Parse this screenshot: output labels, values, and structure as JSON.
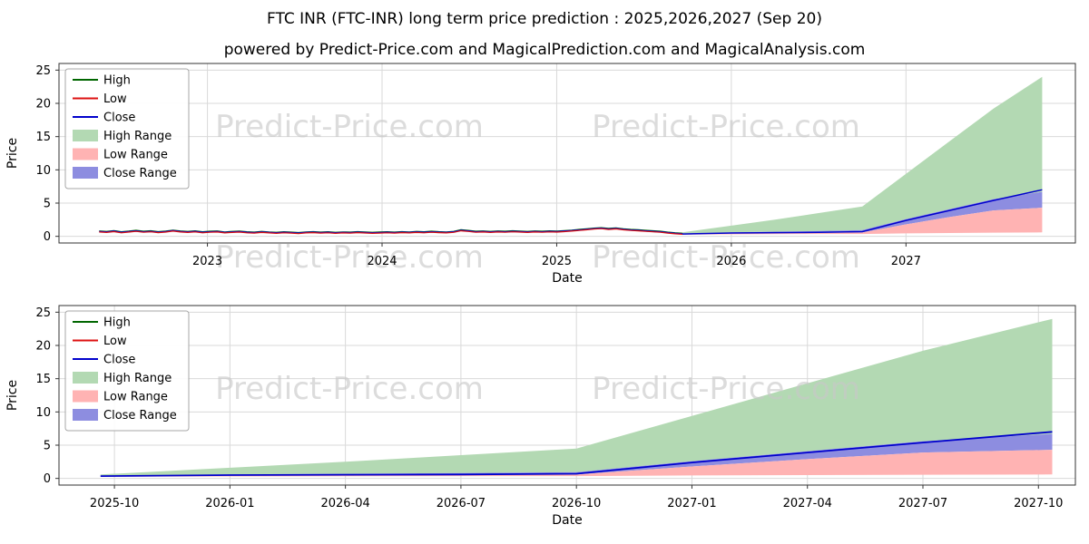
{
  "page": {
    "title": "FTC INR (FTC-INR) long term price prediction : 2025,2026,2027 (Sep 20)",
    "subtitle": "powered by Predict-Price.com and MagicalPrediction.com and MagicalAnalysis.com",
    "watermark": "Predict-Price.com"
  },
  "colors": {
    "high_line": "#006600",
    "low_line": "#dd1111",
    "close_line": "#0000cc",
    "high_range_fill": "#b3d9b3",
    "low_range_fill": "#ffb3b3",
    "close_range_fill": "#8d8de0",
    "grid": "#d9d9d9",
    "axis": "#333333",
    "watermark": "#c8c8c8",
    "legend_border": "#a0a0a0"
  },
  "legend": [
    {
      "label": "High",
      "swatch": "line",
      "color_key": "high_line"
    },
    {
      "label": "Low",
      "swatch": "line",
      "color_key": "low_line"
    },
    {
      "label": "Close",
      "swatch": "line",
      "color_key": "close_line"
    },
    {
      "label": "High Range",
      "swatch": "patch",
      "color_key": "high_range_fill"
    },
    {
      "label": "Low Range",
      "swatch": "patch",
      "color_key": "low_range_fill"
    },
    {
      "label": "Close Range",
      "swatch": "patch",
      "color_key": "close_range_fill"
    }
  ],
  "chart_data": [
    {
      "type": "line",
      "title": "",
      "xlabel": "Date",
      "ylabel": "Price",
      "x_range": [
        2022.15,
        2027.97
      ],
      "y_range": [
        -1,
        26
      ],
      "y_ticks": [
        0,
        5,
        10,
        15,
        20,
        25
      ],
      "x_ticks": [
        {
          "v": 2023,
          "label": "2023"
        },
        {
          "v": 2024,
          "label": "2024"
        },
        {
          "v": 2025,
          "label": "2025"
        },
        {
          "v": 2026,
          "label": "2026"
        },
        {
          "v": 2027,
          "label": "2027"
        }
      ],
      "grid": true,
      "legend_position": "upper-left",
      "show_historical": true,
      "show_forecast": true
    },
    {
      "type": "line",
      "title": "",
      "xlabel": "Date",
      "ylabel": "Price",
      "x_range": [
        2025.63,
        2027.83
      ],
      "y_range": [
        -1,
        26
      ],
      "y_ticks": [
        0,
        5,
        10,
        15,
        20,
        25
      ],
      "x_ticks": [
        {
          "v": 2025.75,
          "label": "2025-10"
        },
        {
          "v": 2026.0,
          "label": "2026-01"
        },
        {
          "v": 2026.25,
          "label": "2026-04"
        },
        {
          "v": 2026.5,
          "label": "2026-07"
        },
        {
          "v": 2026.75,
          "label": "2026-10"
        },
        {
          "v": 2027.0,
          "label": "2027-01"
        },
        {
          "v": 2027.25,
          "label": "2027-04"
        },
        {
          "v": 2027.5,
          "label": "2027-07"
        },
        {
          "v": 2027.75,
          "label": "2027-10"
        }
      ],
      "grid": true,
      "legend_position": "upper-left",
      "show_historical": false,
      "show_forecast": true
    }
  ],
  "historical": {
    "x_start": 2022.38,
    "x_end": 2025.72,
    "high_offset": 0.09,
    "low_offset": -0.07,
    "close": [
      0.72,
      0.65,
      0.78,
      0.6,
      0.7,
      0.82,
      0.68,
      0.75,
      0.62,
      0.7,
      0.85,
      0.72,
      0.65,
      0.74,
      0.6,
      0.68,
      0.72,
      0.58,
      0.65,
      0.7,
      0.6,
      0.55,
      0.65,
      0.58,
      0.52,
      0.6,
      0.55,
      0.48,
      0.58,
      0.62,
      0.55,
      0.6,
      0.52,
      0.58,
      0.55,
      0.62,
      0.57,
      0.52,
      0.56,
      0.6,
      0.55,
      0.62,
      0.58,
      0.65,
      0.6,
      0.68,
      0.62,
      0.58,
      0.66,
      0.9,
      0.8,
      0.68,
      0.72,
      0.65,
      0.72,
      0.68,
      0.75,
      0.7,
      0.65,
      0.72,
      0.68,
      0.74,
      0.7,
      0.78,
      0.85,
      0.95,
      1.05,
      1.15,
      1.22,
      1.1,
      1.18,
      1.05,
      0.95,
      0.9,
      0.82,
      0.75,
      0.68,
      0.55,
      0.45,
      0.38
    ]
  },
  "forecast": {
    "x": [
      2025.72,
      2026.0,
      2026.25,
      2026.5,
      2026.75,
      2027.0,
      2027.25,
      2027.5,
      2027.78
    ],
    "high_top": [
      0.6,
      1.6,
      2.5,
      3.5,
      4.5,
      9.4,
      14.3,
      19.2,
      24.0
    ],
    "close": [
      0.35,
      0.5,
      0.55,
      0.6,
      0.7,
      2.4,
      3.9,
      5.4,
      7.0
    ],
    "close_band_top": [
      0.4,
      0.6,
      0.7,
      0.8,
      0.95,
      2.6,
      4.1,
      5.6,
      6.7
    ],
    "close_band_bot": [
      0.3,
      0.42,
      0.48,
      0.52,
      0.58,
      1.8,
      2.9,
      3.9,
      4.3
    ],
    "low_bot": [
      0.25,
      0.3,
      0.32,
      0.35,
      0.35,
      0.45,
      0.5,
      0.55,
      0.6
    ]
  }
}
